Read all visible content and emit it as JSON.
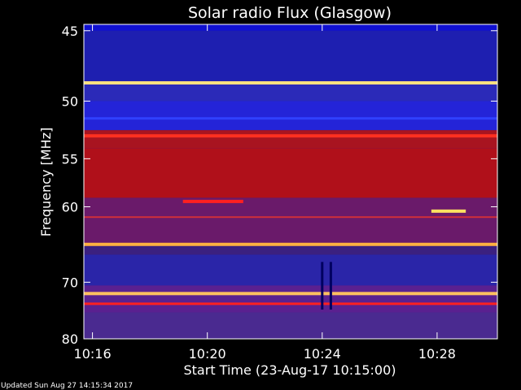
{
  "chart_data": {
    "type": "heatmap",
    "title": "Solar radio Flux (Glasgow)",
    "xlabel": "Start Time (23-Aug-17 10:15:00)",
    "ylabel": "Frequency [MHz]",
    "x_range_minutes": [
      15.7,
      30.1
    ],
    "y_range_mhz": [
      44.6,
      80.0
    ],
    "y_ticks": [
      {
        "value": 45,
        "label": "45"
      },
      {
        "value": 50,
        "label": "50"
      },
      {
        "value": 55,
        "label": "55"
      },
      {
        "value": 60,
        "label": "60"
      },
      {
        "value": 70,
        "label": "70"
      },
      {
        "value": 80,
        "label": "80"
      }
    ],
    "x_ticks": [
      {
        "value": 16,
        "label": "10:16"
      },
      {
        "value": 20,
        "label": "10:20"
      },
      {
        "value": 24,
        "label": "10:24"
      },
      {
        "value": 28,
        "label": "10:28"
      }
    ],
    "y_scale": "inverted frequency axis (high frequency at bottom)",
    "background_bands": [
      {
        "from": 44.6,
        "to": 45.0,
        "color": "#1010d0"
      },
      {
        "from": 45.0,
        "to": 48.5,
        "color": "#1e1fb0"
      },
      {
        "from": 48.5,
        "to": 50.0,
        "color": "#2b2ab8"
      },
      {
        "from": 50.0,
        "to": 52.4,
        "color": "#2424d8"
      },
      {
        "from": 52.4,
        "to": 54.0,
        "color": "#a81420"
      },
      {
        "from": 54.0,
        "to": 59.0,
        "color": "#b0101a"
      },
      {
        "from": 59.0,
        "to": 64.5,
        "color": "#6a1a6a"
      },
      {
        "from": 64.5,
        "to": 66.0,
        "color": "#3b2080"
      },
      {
        "from": 66.0,
        "to": 70.5,
        "color": "#2a25a8"
      },
      {
        "from": 70.5,
        "to": 75.0,
        "color": "#5a2090"
      },
      {
        "from": 75.0,
        "to": 80.0,
        "color": "#4a2a90"
      }
    ],
    "emission_lines": [
      {
        "freq": 48.6,
        "color": "#ffe080",
        "intensity": "high"
      },
      {
        "freq": 51.4,
        "color": "#3040ff",
        "intensity": "medium"
      },
      {
        "freq": 52.9,
        "color": "#ff3020",
        "intensity": "high"
      },
      {
        "freq": 61.2,
        "color": "#d0303a",
        "intensity": "low"
      },
      {
        "freq": 64.6,
        "color": "#ffb040",
        "intensity": "high"
      },
      {
        "freq": 71.8,
        "color": "#ffc060",
        "intensity": "high"
      },
      {
        "freq": 73.5,
        "color": "#ff2020",
        "intensity": "medium"
      }
    ],
    "features": [
      {
        "type": "segment",
        "freq": 59.4,
        "x_from": 19.15,
        "x_to": 21.25,
        "color": "#ff2020"
      },
      {
        "type": "burst",
        "freq": 60.5,
        "x_from": 27.8,
        "x_to": 29.0,
        "color": "#ffe060"
      },
      {
        "type": "spike",
        "x": 24.0,
        "freq_from": 67.0,
        "freq_to": 74.5,
        "color": "#000060"
      },
      {
        "type": "spike",
        "x": 24.3,
        "freq_from": 67.0,
        "freq_to": 74.5,
        "color": "#000060"
      }
    ]
  },
  "footer": {
    "updated": "Updated Sun Aug 27 14:15:34 2017"
  }
}
